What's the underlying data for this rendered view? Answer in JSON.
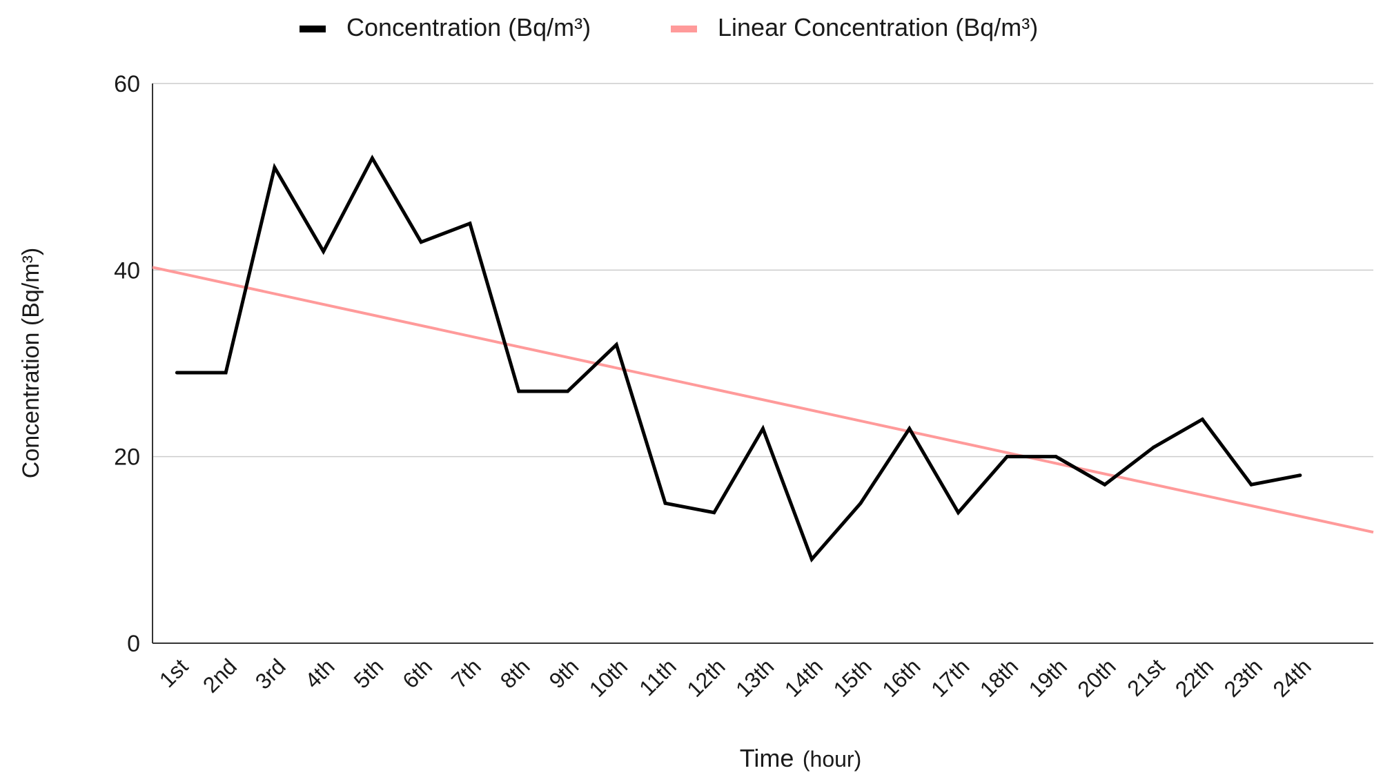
{
  "chart_data": {
    "type": "line",
    "title": "",
    "xlabel": "Time",
    "xlabel_unit": "(hour)",
    "ylabel": "Concentration (Bq/m³)",
    "ylim": [
      0,
      60
    ],
    "yticks": [
      "0",
      "20",
      "40",
      "60"
    ],
    "grid": true,
    "legend_position": "top-center",
    "categories": [
      "1st",
      "2nd",
      "3rd",
      "4th",
      "5th",
      "6th",
      "7th",
      "8th",
      "9th",
      "10th",
      "11th",
      "12th",
      "13th",
      "14th",
      "15th",
      "16th",
      "17th",
      "18th",
      "19th",
      "20th",
      "21st",
      "22th",
      "23th",
      "24th"
    ],
    "series": [
      {
        "name": "Concentration (Bq/m³)",
        "color": "#000000",
        "values": [
          29,
          29,
          51,
          42,
          52,
          43,
          45,
          27,
          27,
          32,
          15,
          14,
          23,
          9,
          15,
          23,
          14,
          20,
          20,
          17,
          21,
          24,
          17,
          18
        ]
      },
      {
        "name": "Linear Concentration (Bq/m³)",
        "color": "#ff9a9a",
        "trend_start": [
          0,
          40.3
        ],
        "trend_end": [
          25,
          11.9
        ]
      }
    ]
  }
}
